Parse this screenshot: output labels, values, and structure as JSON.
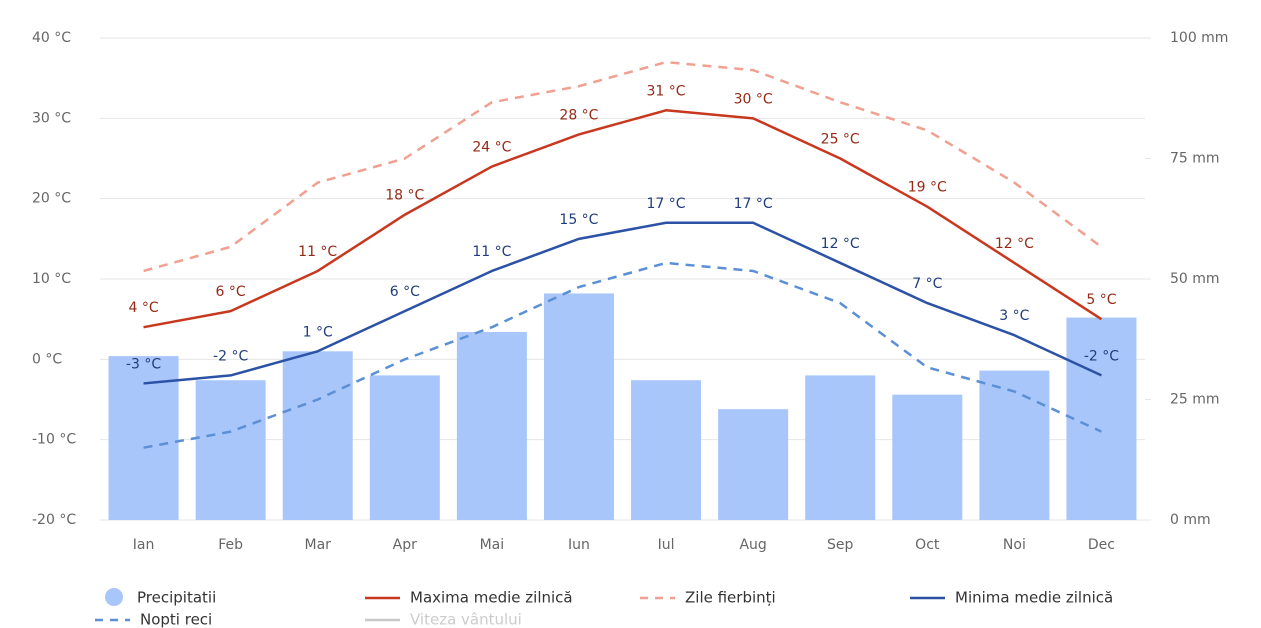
{
  "chart_data": {
    "type": "combo",
    "categories": [
      "Ian",
      "Feb",
      "Mar",
      "Apr",
      "Mai",
      "Iun",
      "Iul",
      "Aug",
      "Sep",
      "Oct",
      "Noi",
      "Dec"
    ],
    "ylim": [
      -20,
      40
    ],
    "yticks": [
      {
        "value": -20,
        "label": "-20 °C"
      },
      {
        "value": -10,
        "label": "-10 °C"
      },
      {
        "value": 0,
        "label": "0 °C"
      },
      {
        "value": 10,
        "label": "10 °C"
      },
      {
        "value": 20,
        "label": "20 °C"
      },
      {
        "value": 30,
        "label": "30 °C"
      },
      {
        "value": 40,
        "label": "40 °C"
      }
    ],
    "y2lim": [
      0,
      100
    ],
    "y2ticks": [
      {
        "value": 0,
        "label": "0 mm"
      },
      {
        "value": 25,
        "label": "25 mm"
      },
      {
        "value": 50,
        "label": "50 mm"
      },
      {
        "value": 75,
        "label": "75 mm"
      },
      {
        "value": 100,
        "label": "100 mm"
      }
    ],
    "grid": true,
    "series": [
      {
        "name": "Precipitatii",
        "type": "bar",
        "axis": "y2",
        "color": "#a8c6fa",
        "values": [
          34,
          29,
          35,
          30,
          39,
          47,
          29,
          23,
          30,
          26,
          31,
          42
        ]
      },
      {
        "name": "Maxima medie zilnică",
        "type": "line",
        "color": "#c8381f",
        "values": [
          4,
          6,
          11,
          18,
          24,
          28,
          31,
          30,
          25,
          19,
          12,
          5
        ],
        "value_labels": [
          "4 °C",
          "6 °C",
          "11 °C",
          "18 °C",
          "24 °C",
          "28 °C",
          "31 °C",
          "30 °C",
          "25 °C",
          "19 °C",
          "12 °C",
          "5 °C"
        ]
      },
      {
        "name": "Zile fierbinți",
        "type": "dashed",
        "color": "#f0a090",
        "values": [
          11,
          14,
          22,
          25,
          32,
          34,
          37,
          36,
          32,
          28.5,
          22,
          14
        ]
      },
      {
        "name": "Minima medie zilnică",
        "type": "line",
        "color": "#2c52a6",
        "values": [
          -3,
          -2,
          1,
          6,
          11,
          15,
          17,
          17,
          12,
          7,
          3,
          -2
        ],
        "value_labels": [
          "-3 °C",
          "-2 °C",
          "1 °C",
          "6 °C",
          "11 °C",
          "15 °C",
          "17 °C",
          "17 °C",
          "12 °C",
          "7 °C",
          "3 °C",
          "-2 °C"
        ]
      },
      {
        "name": "Nopti reci",
        "type": "dashed",
        "color": "#5b8fd6",
        "values": [
          -11,
          -9,
          -5,
          0,
          4,
          9,
          12,
          11,
          7,
          -1,
          -4,
          -9
        ]
      },
      {
        "name": "Viteza vântului",
        "type": "hidden",
        "color": "#c8c8c8",
        "values": [
          null,
          null,
          null,
          null,
          null,
          null,
          null,
          null,
          null,
          null,
          null,
          null
        ]
      }
    ]
  }
}
